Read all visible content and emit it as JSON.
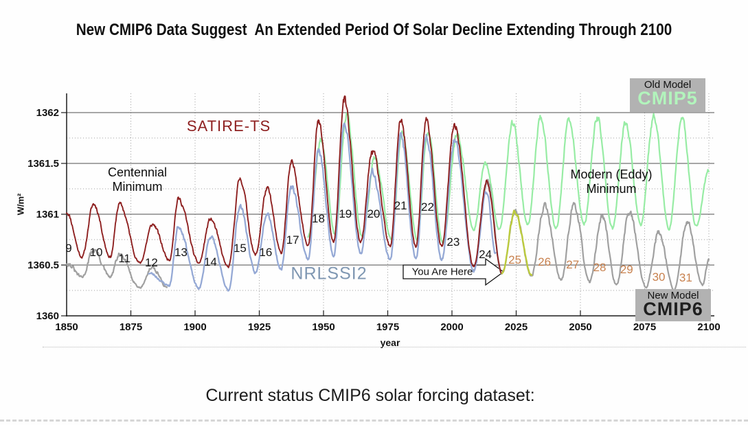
{
  "title": "New CMIP6 Data Suggest  An Extended Period Of Solar Decline Extending Through 2100",
  "caption": "Current status CMIP6 solar forcing dataset:",
  "labels": {
    "satire": "SATIRE-TS",
    "nrlssi2": "NRLSSI2",
    "old_model": "Old Model",
    "cmip5": "CMIP5",
    "new_model": "New Model",
    "cmip6": "CMIP6",
    "centennial_1": "Centennial",
    "centennial_2": "Minimum",
    "modern_1": "Modern (Eddy)",
    "modern_2": "Minimum",
    "you_are_here": "You Are Here"
  },
  "colors": {
    "satire": "#8e2020",
    "nrlssi2": "#95a9d5",
    "nrlssi2_label": "#7f97b2",
    "cmip5": "#97ecA4",
    "cmip5_label": "#b2f4bc",
    "cmip6": "#a0a0a0",
    "cmip6_label": "#1f1f1f",
    "cycle25": "#bccb3d",
    "cycle_orange": "#c8814e",
    "cycle_black": "#161616",
    "grid_solid": "#4f4f4f",
    "grid_dotted": "#9f9f9f",
    "axis": "#1a1a1a",
    "box_bg": "#b2b2b2"
  },
  "chart_data": {
    "type": "line",
    "title": "",
    "xlabel": "year",
    "ylabel": "W/m²",
    "xlim": [
      1850,
      2100
    ],
    "ylim": [
      1360,
      1362.2
    ],
    "grid": true,
    "x_axis": {
      "ticks": [
        {
          "value": 1850,
          "label": "1850"
        },
        {
          "value": 1875,
          "label": "1875"
        },
        {
          "value": 1900,
          "label": "1900"
        },
        {
          "value": 1925,
          "label": "1925"
        },
        {
          "value": 1950,
          "label": "1950"
        },
        {
          "value": 1975,
          "label": "1975"
        },
        {
          "value": 2000,
          "label": "2000"
        },
        {
          "value": 2025,
          "label": "2025"
        },
        {
          "value": 2050,
          "label": "2050"
        },
        {
          "value": 2075,
          "label": "2075"
        },
        {
          "value": 2100,
          "label": "2100"
        }
      ]
    },
    "y_axis": {
      "ticks": [
        {
          "value": 1360,
          "label": "1360"
        },
        {
          "value": 1360.5,
          "label": "1360.5"
        },
        {
          "value": 1361,
          "label": "1361"
        },
        {
          "value": 1361.5,
          "label": "1361.5"
        },
        {
          "value": 1362,
          "label": "1362"
        }
      ],
      "minor": [
        1360.25,
        1360.75,
        1361.25,
        1361.75
      ]
    },
    "annotations": {
      "centennial_minimum": {
        "text": "Centennial Minimum",
        "near_year": 1877,
        "near_value": 1361.4
      },
      "modern_eddy_minimum": {
        "text": "Modern (Eddy) Minimum",
        "near_year": 2062,
        "near_value": 1361.4
      },
      "you_are_here": {
        "text": "You Are Here",
        "points_to_year": 2019.5,
        "points_to_value": 1360.43
      }
    },
    "cycle_labels": [
      {
        "n": "9",
        "year": 1850.8,
        "value": 1360.66,
        "tone": "black"
      },
      {
        "n": "10",
        "year": 1861.5,
        "value": 1360.62,
        "tone": "black"
      },
      {
        "n": "11",
        "year": 1872.5,
        "value": 1360.56,
        "tone": "black"
      },
      {
        "n": "12",
        "year": 1883.0,
        "value": 1360.52,
        "tone": "black"
      },
      {
        "n": "13",
        "year": 1894.5,
        "value": 1360.62,
        "tone": "black"
      },
      {
        "n": "14",
        "year": 1906.0,
        "value": 1360.53,
        "tone": "black"
      },
      {
        "n": "15",
        "year": 1917.5,
        "value": 1360.66,
        "tone": "black"
      },
      {
        "n": "16",
        "year": 1927.5,
        "value": 1360.62,
        "tone": "black"
      },
      {
        "n": "17",
        "year": 1938.0,
        "value": 1360.74,
        "tone": "black"
      },
      {
        "n": "18",
        "year": 1948.0,
        "value": 1360.95,
        "tone": "black"
      },
      {
        "n": "19",
        "year": 1958.5,
        "value": 1361.0,
        "tone": "black"
      },
      {
        "n": "20",
        "year": 1969.5,
        "value": 1361.0,
        "tone": "black"
      },
      {
        "n": "21",
        "year": 1980.0,
        "value": 1361.08,
        "tone": "black"
      },
      {
        "n": "22",
        "year": 1990.5,
        "value": 1361.07,
        "tone": "black"
      },
      {
        "n": "23",
        "year": 2000.5,
        "value": 1360.72,
        "tone": "black"
      },
      {
        "n": "24",
        "year": 2013.0,
        "value": 1360.6,
        "tone": "black"
      },
      {
        "n": "25",
        "year": 2024.5,
        "value": 1360.55,
        "tone": "orange"
      },
      {
        "n": "26",
        "year": 2036.0,
        "value": 1360.53,
        "tone": "orange"
      },
      {
        "n": "27",
        "year": 2047.0,
        "value": 1360.5,
        "tone": "orange"
      },
      {
        "n": "28",
        "year": 2057.5,
        "value": 1360.47,
        "tone": "orange"
      },
      {
        "n": "29",
        "year": 2068.0,
        "value": 1360.45,
        "tone": "orange"
      },
      {
        "n": "30",
        "year": 2080.5,
        "value": 1360.38,
        "tone": "orange"
      },
      {
        "n": "31",
        "year": 2091.0,
        "value": 1360.37,
        "tone": "orange"
      }
    ],
    "series": [
      {
        "id": "cmip5",
        "name": "CMIP5 (Old Model)",
        "color_key": "cmip5",
        "width": 2.2,
        "noise": 0.045,
        "seed": 41,
        "points": [
          [
            1944,
            1360.78
          ],
          [
            1949,
            1361.72
          ],
          [
            1954.5,
            1360.8
          ],
          [
            1959,
            1361.98
          ],
          [
            1965,
            1360.78
          ],
          [
            1970,
            1361.55
          ],
          [
            1976.5,
            1360.75
          ],
          [
            1980.5,
            1361.82
          ],
          [
            1986.5,
            1360.75
          ],
          [
            1990.5,
            1361.82
          ],
          [
            1996.5,
            1360.72
          ],
          [
            2002,
            1361.78
          ],
          [
            2008.5,
            1360.85
          ],
          [
            2013,
            1361.5
          ],
          [
            2018.5,
            1360.85
          ],
          [
            2023.5,
            1361.9
          ],
          [
            2029.5,
            1360.9
          ],
          [
            2034.5,
            1361.95
          ],
          [
            2040.5,
            1360.86
          ],
          [
            2045.5,
            1361.92
          ],
          [
            2051.5,
            1360.9
          ],
          [
            2056.5,
            1361.95
          ],
          [
            2062.5,
            1360.86
          ],
          [
            2067.5,
            1361.9
          ],
          [
            2073.5,
            1360.9
          ],
          [
            2078.5,
            1361.95
          ],
          [
            2084.5,
            1360.86
          ],
          [
            2089.5,
            1361.93
          ],
          [
            2095,
            1360.88
          ],
          [
            2100,
            1361.42
          ]
        ]
      },
      {
        "id": "cmip6-historical",
        "name": "CMIP6 early segment",
        "color_key": "cmip6",
        "width": 2.2,
        "noise": 0.04,
        "seed": 31,
        "points": [
          [
            1850,
            1360.52
          ],
          [
            1856,
            1360.38
          ],
          [
            1860.5,
            1360.65
          ],
          [
            1867,
            1360.38
          ],
          [
            1870.5,
            1360.6
          ],
          [
            1878.5,
            1360.28
          ],
          [
            1883.5,
            1360.48
          ],
          [
            1889,
            1360.28
          ]
        ]
      },
      {
        "id": "cmip6-future",
        "name": "CMIP6 (New Model)",
        "color_key": "cmip6",
        "width": 2.2,
        "noise": 0.05,
        "seed": 53,
        "points": [
          [
            2008.5,
            1360.46
          ],
          [
            2013.8,
            1361.33
          ],
          [
            2019.5,
            1360.42
          ],
          [
            2024.5,
            1361.02
          ],
          [
            2031,
            1360.4
          ],
          [
            2036,
            1361.08
          ],
          [
            2042.5,
            1360.35
          ],
          [
            2047.5,
            1361.1
          ],
          [
            2053.5,
            1360.33
          ],
          [
            2058.5,
            1360.98
          ],
          [
            2064,
            1360.3
          ],
          [
            2069,
            1361.02
          ],
          [
            2075.5,
            1360.28
          ],
          [
            2080.5,
            1360.82
          ],
          [
            2086.5,
            1360.25
          ],
          [
            2091.5,
            1360.92
          ],
          [
            2097.5,
            1360.3
          ],
          [
            2100,
            1360.55
          ]
        ]
      },
      {
        "id": "nrlssi2",
        "name": "NRLSSI2",
        "color_key": "nrlssi2",
        "width": 2.3,
        "noise": 0.05,
        "seed": 23,
        "points": [
          [
            1882,
            1360.42
          ],
          [
            1890,
            1360.3
          ],
          [
            1893.5,
            1360.88
          ],
          [
            1901.5,
            1360.27
          ],
          [
            1906,
            1360.78
          ],
          [
            1913,
            1360.25
          ],
          [
            1917.5,
            1361.08
          ],
          [
            1923.5,
            1360.42
          ],
          [
            1928,
            1361.02
          ],
          [
            1933.5,
            1360.46
          ],
          [
            1937.5,
            1361.28
          ],
          [
            1944,
            1360.56
          ],
          [
            1948,
            1361.62
          ],
          [
            1954,
            1360.6
          ],
          [
            1958,
            1361.88
          ],
          [
            1964.5,
            1360.62
          ],
          [
            1969,
            1361.42
          ],
          [
            1976,
            1360.55
          ],
          [
            1980,
            1361.78
          ],
          [
            1986,
            1360.55
          ],
          [
            1990,
            1361.78
          ],
          [
            1996,
            1360.55
          ],
          [
            2001,
            1361.72
          ],
          [
            2008.5,
            1360.44
          ],
          [
            2013.5,
            1361.22
          ],
          [
            2017,
            1360.62
          ]
        ]
      },
      {
        "id": "satire-ts",
        "name": "SATIRE-TS",
        "color_key": "satire",
        "width": 1.9,
        "noise": 0.05,
        "seed": 11,
        "points": [
          [
            1850,
            1361.02
          ],
          [
            1856,
            1360.58
          ],
          [
            1860.5,
            1361.1
          ],
          [
            1867,
            1360.58
          ],
          [
            1870.5,
            1361.1
          ],
          [
            1878.5,
            1360.52
          ],
          [
            1883.5,
            1360.9
          ],
          [
            1890,
            1360.55
          ],
          [
            1893.5,
            1361.15
          ],
          [
            1901.5,
            1360.52
          ],
          [
            1906,
            1360.95
          ],
          [
            1913,
            1360.48
          ],
          [
            1917.5,
            1361.35
          ],
          [
            1923.5,
            1360.6
          ],
          [
            1928,
            1361.25
          ],
          [
            1933.5,
            1360.62
          ],
          [
            1937.5,
            1361.5
          ],
          [
            1944,
            1360.7
          ],
          [
            1948,
            1361.9
          ],
          [
            1954,
            1360.72
          ],
          [
            1958,
            1362.12
          ],
          [
            1964.5,
            1360.72
          ],
          [
            1969,
            1361.62
          ],
          [
            1976,
            1360.68
          ],
          [
            1980,
            1361.93
          ],
          [
            1986,
            1360.68
          ],
          [
            1990,
            1361.93
          ],
          [
            1996,
            1360.68
          ],
          [
            2001,
            1361.88
          ],
          [
            2008.5,
            1360.48
          ],
          [
            2013.5,
            1361.32
          ],
          [
            2019.5,
            1360.42
          ]
        ]
      },
      {
        "id": "cycle25-highlight",
        "name": "Solar cycle 25 (highlighted)",
        "color_key": "cycle25",
        "width": 2.4,
        "noise": 0.035,
        "seed": 61,
        "points": [
          [
            2019.5,
            1360.42
          ],
          [
            2024.5,
            1361.02
          ],
          [
            2031,
            1360.4
          ]
        ]
      }
    ]
  }
}
